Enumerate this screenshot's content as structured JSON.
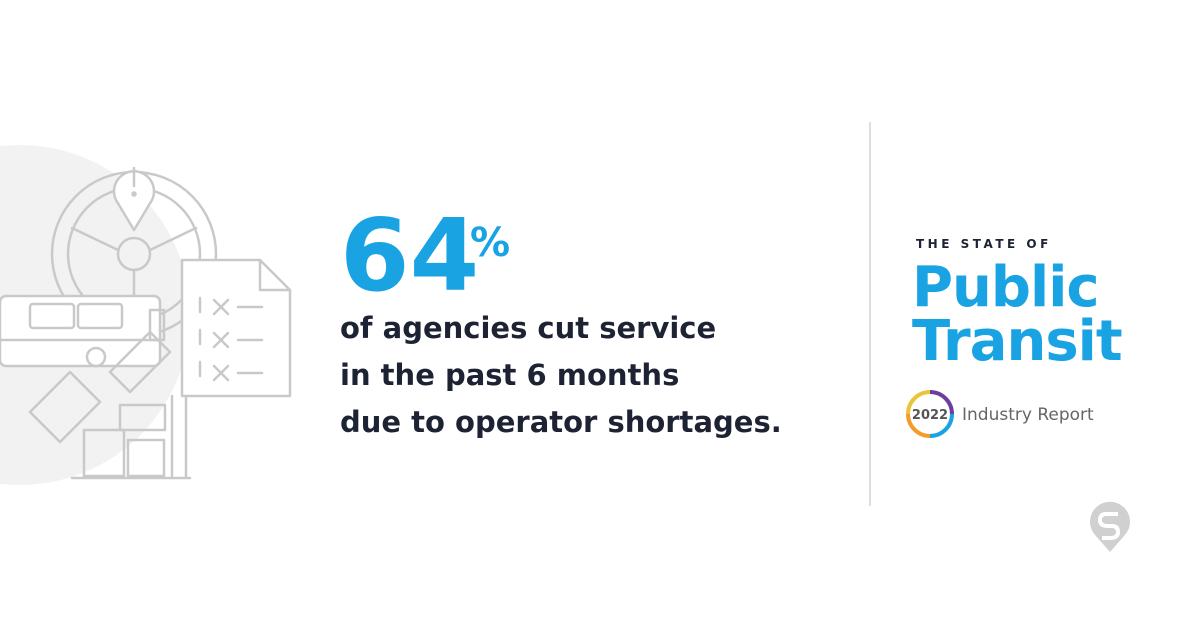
{
  "stat": {
    "value": "64",
    "unit": "%",
    "lines": [
      "of agencies cut service",
      "in the past 6 months",
      "due to operator shortages."
    ]
  },
  "report": {
    "kicker": "THE STATE OF",
    "title_lines": [
      "Public",
      "Transit"
    ],
    "year": "2022",
    "subtitle": "Industry Report"
  }
}
